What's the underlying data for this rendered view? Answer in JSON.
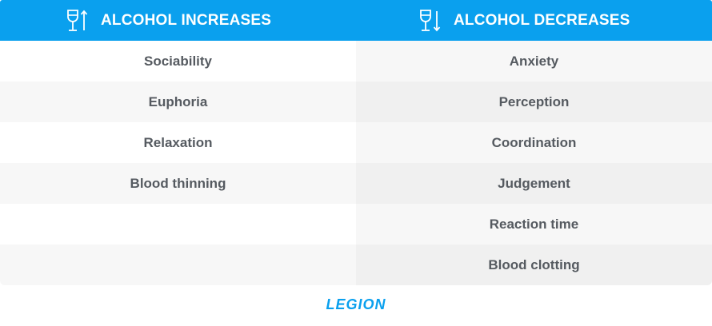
{
  "header": {
    "left": {
      "icon": "wine-glass-arrow-up-icon",
      "label": "ALCOHOL INCREASES"
    },
    "right": {
      "icon": "wine-glass-arrow-down-icon",
      "label": "ALCOHOL DECREASES"
    }
  },
  "increases": [
    "Sociability",
    "Euphoria",
    "Relaxation",
    "Blood thinning",
    "",
    ""
  ],
  "decreases": [
    "Anxiety",
    "Perception",
    "Coordination",
    "Judgement",
    "Reaction time",
    "Blood clotting"
  ],
  "logo": {
    "text": "LEGION"
  },
  "colors": {
    "header_bg": "#0aa0ee",
    "header_text": "#ffffff",
    "cell_text": "#555a60",
    "logo": "#0aa0ee"
  }
}
